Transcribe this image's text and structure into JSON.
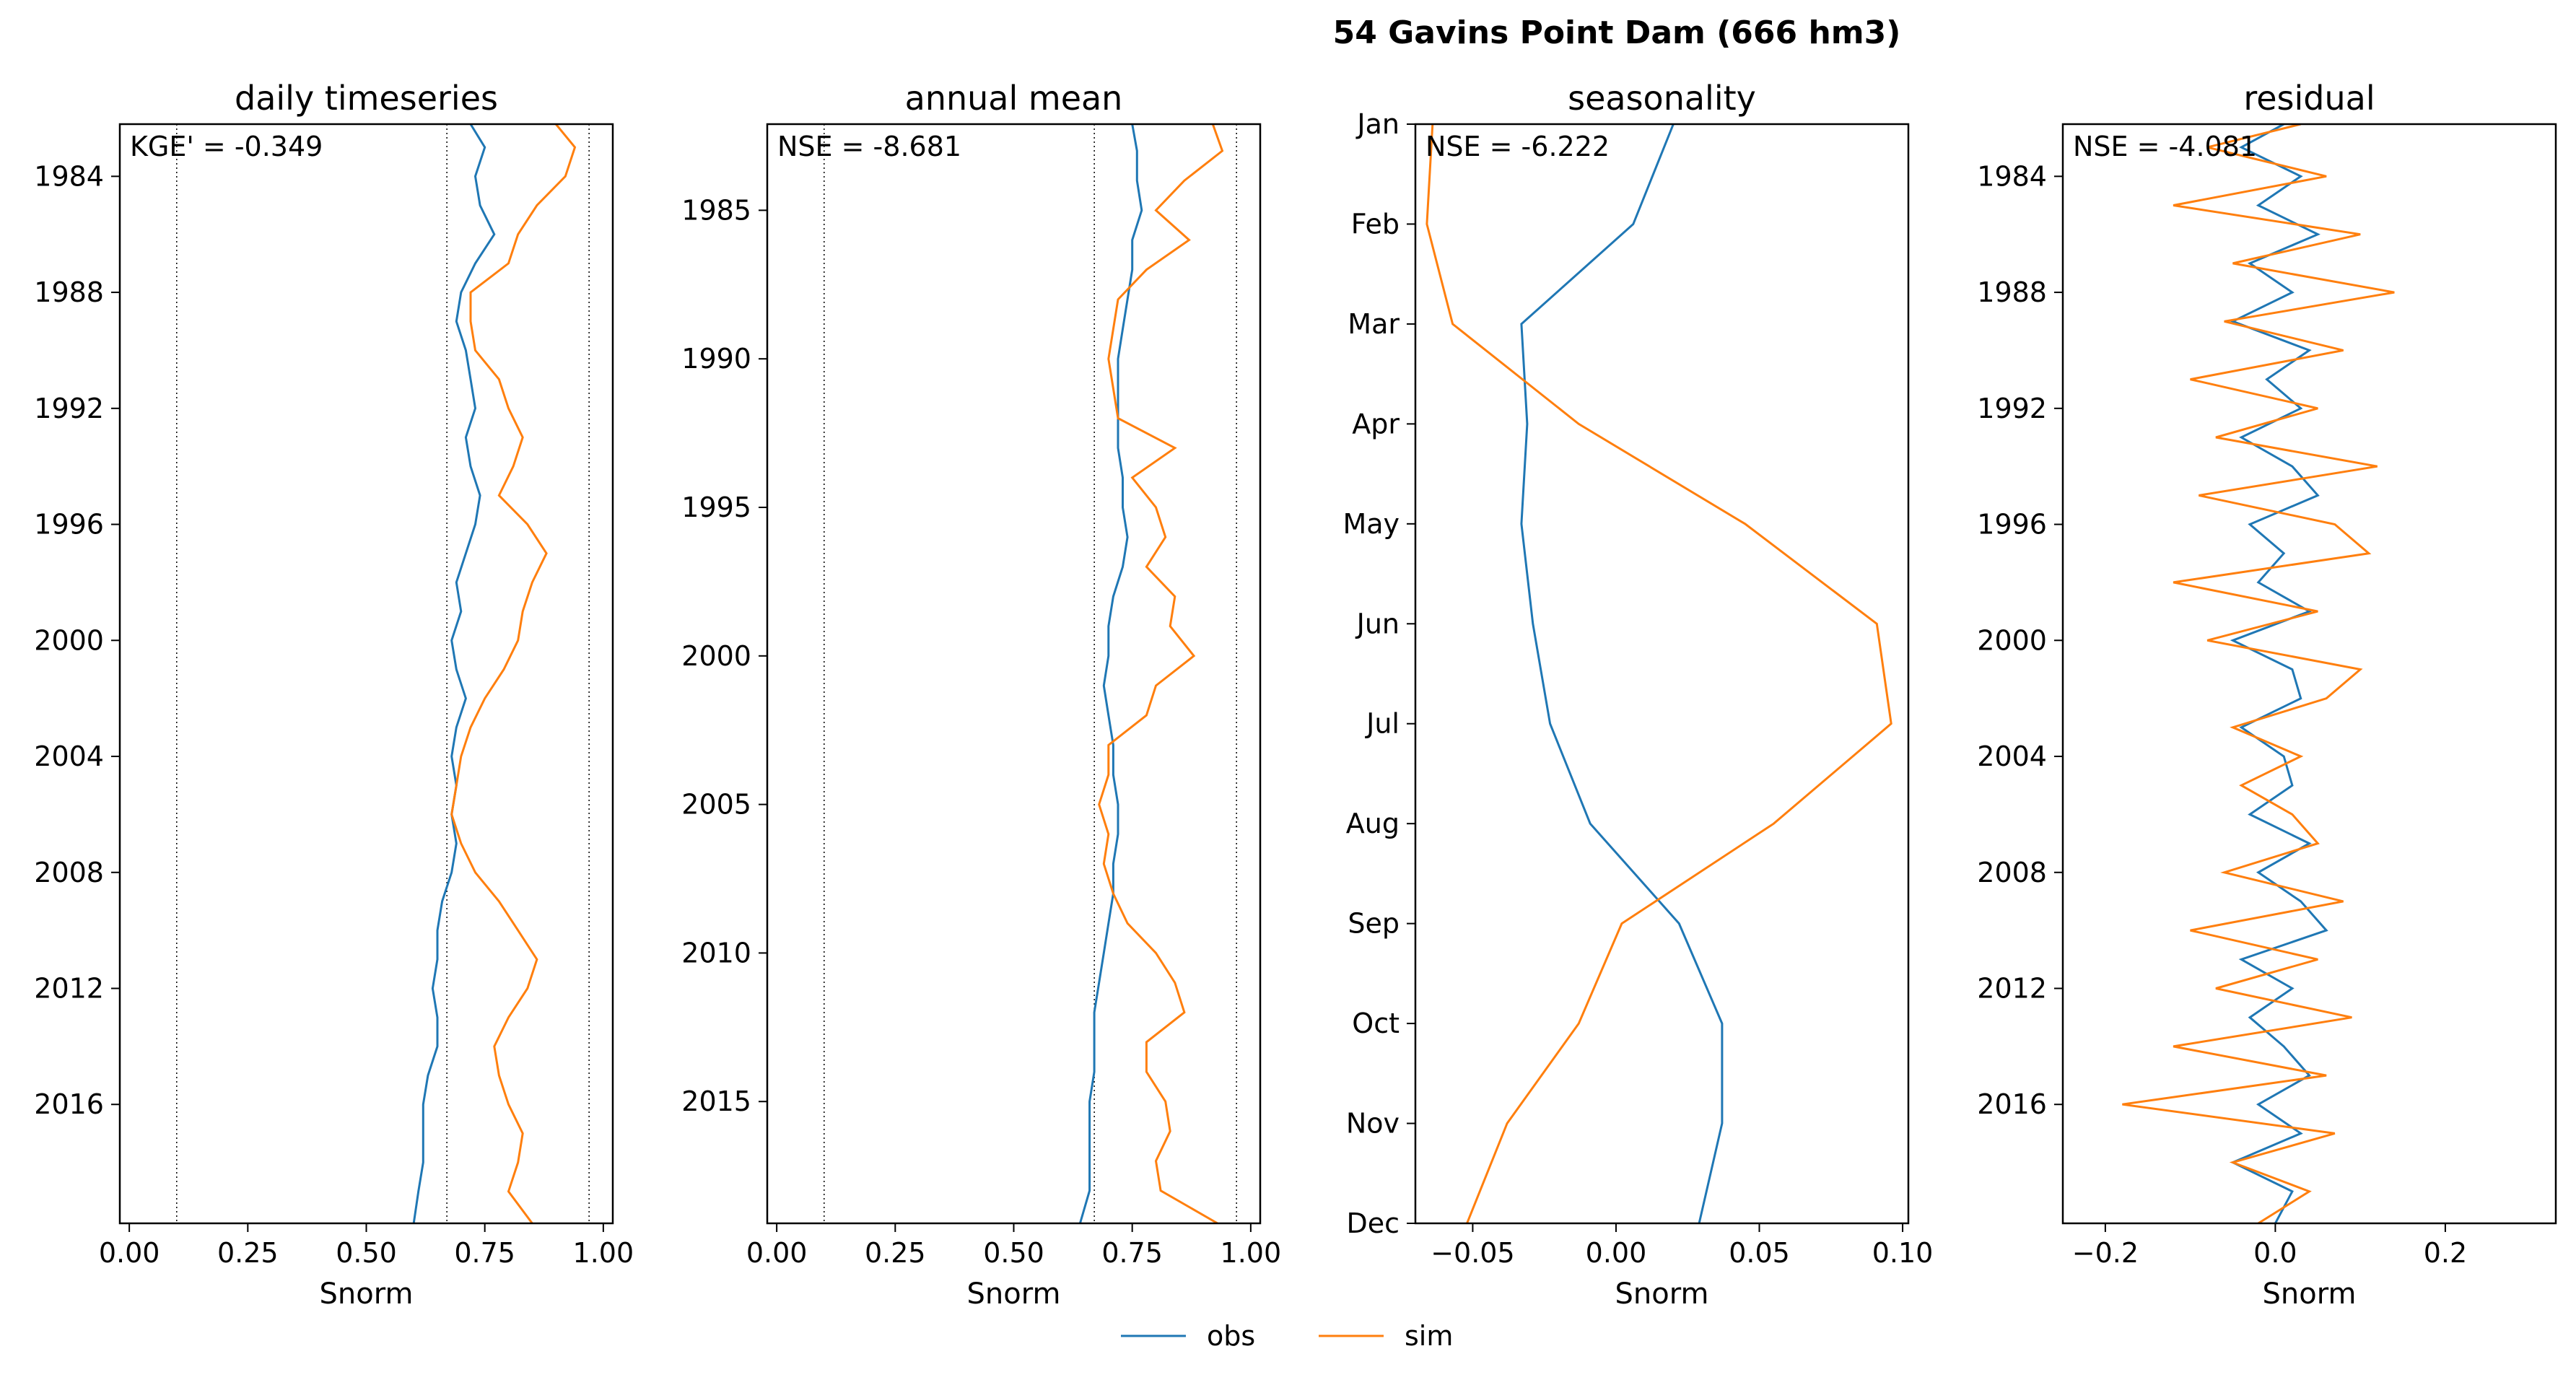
{
  "figure": {
    "suptitle": "54  Gavins Point Dam (666 hm3)",
    "legend": {
      "position": "bottom-center",
      "entries": [
        "obs",
        "sim"
      ]
    },
    "colors": {
      "obs": "#1f77b4",
      "sim": "#ff7f0e",
      "ref_line": "#000000"
    }
  },
  "chart_data": [
    {
      "type": "line",
      "orientation": "horizontal-value",
      "title": "daily timeseries",
      "xlabel": "Snorm",
      "ylabel": "",
      "annotation": "KGE' = -0.349",
      "xlim": [
        -0.02,
        1.02
      ],
      "xticks": [
        0.0,
        0.25,
        0.5,
        0.75,
        1.0
      ],
      "xtick_labels": [
        "0.00",
        "0.25",
        "0.50",
        "0.75",
        "1.00"
      ],
      "ylim": [
        1982.2,
        2020.1
      ],
      "yticks": [
        1984,
        1988,
        1992,
        1996,
        2000,
        2004,
        2008,
        2012,
        2016
      ],
      "ytick_labels": [
        "1984",
        "1988",
        "1992",
        "1996",
        "2000",
        "2004",
        "2008",
        "2012",
        "2016"
      ],
      "y_inverted": true,
      "ref_lines_x": [
        0.1,
        0.67,
        0.97
      ],
      "series": [
        {
          "name": "obs",
          "y": [
            1982.2,
            1983,
            1984,
            1985,
            1986,
            1987,
            1988,
            1989,
            1990,
            1991,
            1992,
            1993,
            1994,
            1995,
            1996,
            1997,
            1998,
            1999,
            2000,
            2001,
            2002,
            2003,
            2004,
            2005,
            2006,
            2007,
            2008,
            2009,
            2010,
            2011,
            2012,
            2013,
            2014,
            2015,
            2016,
            2017,
            2018,
            2019,
            2020.1
          ],
          "values": [
            0.72,
            0.75,
            0.73,
            0.74,
            0.77,
            0.73,
            0.7,
            0.69,
            0.71,
            0.72,
            0.73,
            0.71,
            0.72,
            0.74,
            0.73,
            0.71,
            0.69,
            0.7,
            0.68,
            0.69,
            0.71,
            0.69,
            0.68,
            0.69,
            0.68,
            0.69,
            0.68,
            0.66,
            0.65,
            0.65,
            0.64,
            0.65,
            0.65,
            0.63,
            0.62,
            0.62,
            0.62,
            0.61,
            0.6
          ]
        },
        {
          "name": "sim",
          "y": [
            1982.2,
            1983,
            1984,
            1985,
            1986,
            1987,
            1988,
            1989,
            1990,
            1991,
            1992,
            1993,
            1994,
            1995,
            1996,
            1997,
            1998,
            1999,
            2000,
            2001,
            2002,
            2003,
            2004,
            2005,
            2006,
            2007,
            2008,
            2009,
            2010,
            2011,
            2012,
            2013,
            2014,
            2015,
            2016,
            2017,
            2018,
            2019,
            2020.1
          ],
          "values": [
            0.9,
            0.94,
            0.92,
            0.86,
            0.82,
            0.8,
            0.72,
            0.72,
            0.73,
            0.78,
            0.8,
            0.83,
            0.81,
            0.78,
            0.84,
            0.88,
            0.85,
            0.83,
            0.82,
            0.79,
            0.75,
            0.72,
            0.7,
            0.69,
            0.68,
            0.7,
            0.73,
            0.78,
            0.82,
            0.86,
            0.84,
            0.8,
            0.77,
            0.78,
            0.8,
            0.83,
            0.82,
            0.8,
            0.85
          ]
        }
      ]
    },
    {
      "type": "line",
      "orientation": "horizontal-value",
      "title": "annual mean",
      "xlabel": "Snorm",
      "ylabel": "",
      "annotation": "NSE = -8.681",
      "xlim": [
        -0.02,
        1.02
      ],
      "xticks": [
        0.0,
        0.25,
        0.5,
        0.75,
        1.0
      ],
      "xtick_labels": [
        "0.00",
        "0.25",
        "0.50",
        "0.75",
        "1.00"
      ],
      "ylim": [
        1982.1,
        2019.1
      ],
      "yticks": [
        1985,
        1990,
        1995,
        2000,
        2005,
        2010,
        2015
      ],
      "ytick_labels": [
        "1985",
        "1990",
        "1995",
        "2000",
        "2005",
        "2010",
        "2015"
      ],
      "y_inverted": true,
      "ref_lines_x": [
        0.1,
        0.67,
        0.97
      ],
      "series": [
        {
          "name": "obs",
          "y": [
            1982.1,
            1983,
            1984,
            1985,
            1986,
            1987,
            1988,
            1989,
            1990,
            1991,
            1992,
            1993,
            1994,
            1995,
            1996,
            1997,
            1998,
            1999,
            2000,
            2001,
            2002,
            2003,
            2004,
            2005,
            2006,
            2007,
            2008,
            2009,
            2010,
            2011,
            2012,
            2013,
            2014,
            2015,
            2016,
            2017,
            2018,
            2019.1
          ],
          "values": [
            0.75,
            0.76,
            0.76,
            0.77,
            0.75,
            0.75,
            0.74,
            0.73,
            0.72,
            0.72,
            0.72,
            0.72,
            0.73,
            0.73,
            0.74,
            0.73,
            0.71,
            0.7,
            0.7,
            0.69,
            0.7,
            0.71,
            0.71,
            0.72,
            0.72,
            0.71,
            0.71,
            0.7,
            0.69,
            0.68,
            0.67,
            0.67,
            0.67,
            0.66,
            0.66,
            0.66,
            0.66,
            0.64
          ]
        },
        {
          "name": "sim",
          "y": [
            1982.1,
            1983,
            1984,
            1985,
            1986,
            1987,
            1988,
            1989,
            1990,
            1991,
            1992,
            1993,
            1994,
            1995,
            1996,
            1997,
            1998,
            1999,
            2000,
            2001,
            2002,
            2003,
            2004,
            2005,
            2006,
            2007,
            2008,
            2009,
            2010,
            2011,
            2012,
            2013,
            2014,
            2015,
            2016,
            2017,
            2018,
            2019.1
          ],
          "values": [
            0.92,
            0.94,
            0.86,
            0.8,
            0.87,
            0.78,
            0.72,
            0.71,
            0.7,
            0.71,
            0.72,
            0.84,
            0.75,
            0.8,
            0.82,
            0.78,
            0.84,
            0.83,
            0.88,
            0.8,
            0.78,
            0.7,
            0.7,
            0.68,
            0.7,
            0.69,
            0.71,
            0.74,
            0.8,
            0.84,
            0.86,
            0.78,
            0.78,
            0.82,
            0.83,
            0.8,
            0.81,
            0.93
          ]
        }
      ]
    },
    {
      "type": "line",
      "orientation": "horizontal-value",
      "title": "seasonality",
      "xlabel": "Snorm",
      "ylabel": "",
      "annotation": "NSE = -6.222",
      "xlim": [
        -0.07,
        0.102
      ],
      "xticks": [
        -0.05,
        0.0,
        0.05,
        0.1
      ],
      "xtick_labels": [
        "−0.05",
        "0.00",
        "0.05",
        "0.10"
      ],
      "ylim": [
        1,
        12
      ],
      "yticks": [
        1,
        2,
        3,
        4,
        5,
        6,
        7,
        8,
        9,
        10,
        11,
        12
      ],
      "ytick_labels": [
        "Jan",
        "Feb",
        "Mar",
        "Apr",
        "May",
        "Jun",
        "Jul",
        "Aug",
        "Sep",
        "Oct",
        "Nov",
        "Dec"
      ],
      "y_inverted": true,
      "ref_lines_x": [],
      "series": [
        {
          "name": "obs",
          "y": [
            1,
            2,
            3,
            4,
            5,
            6,
            7,
            8,
            9,
            10,
            11,
            12
          ],
          "values": [
            0.02,
            0.006,
            -0.033,
            -0.031,
            -0.033,
            -0.029,
            -0.023,
            -0.009,
            0.022,
            0.037,
            0.037,
            0.029
          ]
        },
        {
          "name": "sim",
          "y": [
            1,
            2,
            3,
            4,
            5,
            6,
            7,
            8,
            9,
            10,
            11,
            12
          ],
          "values": [
            -0.064,
            -0.066,
            -0.057,
            -0.013,
            0.045,
            0.091,
            0.096,
            0.055,
            0.002,
            -0.013,
            -0.038,
            -0.052
          ]
        }
      ]
    },
    {
      "type": "line",
      "orientation": "horizontal-value",
      "title": "residual",
      "xlabel": "Snorm",
      "ylabel": "",
      "annotation": "NSE = -4.081",
      "xlim": [
        -0.25,
        0.33
      ],
      "xticks": [
        -0.2,
        0.0,
        0.2
      ],
      "xtick_labels": [
        "−0.2",
        "0.0",
        "0.2"
      ],
      "ylim": [
        1982.2,
        2020.1
      ],
      "yticks": [
        1984,
        1988,
        1992,
        1996,
        2000,
        2004,
        2008,
        2012,
        2016
      ],
      "ytick_labels": [
        "1984",
        "1988",
        "1992",
        "1996",
        "2000",
        "2004",
        "2008",
        "2012",
        "2016"
      ],
      "y_inverted": true,
      "ref_lines_x": [],
      "series": [
        {
          "name": "obs",
          "y": [
            1982.2,
            1983,
            1984,
            1985,
            1986,
            1987,
            1988,
            1989,
            1990,
            1991,
            1992,
            1993,
            1994,
            1995,
            1996,
            1997,
            1998,
            1999,
            2000,
            2001,
            2002,
            2003,
            2004,
            2005,
            2006,
            2007,
            2008,
            2009,
            2010,
            2011,
            2012,
            2013,
            2014,
            2015,
            2016,
            2017,
            2018,
            2019,
            2020.1
          ],
          "values": [
            0.01,
            -0.04,
            0.03,
            -0.02,
            0.05,
            -0.03,
            0.02,
            -0.05,
            0.04,
            -0.01,
            0.03,
            -0.04,
            0.02,
            0.05,
            -0.03,
            0.01,
            -0.02,
            0.04,
            -0.05,
            0.02,
            0.03,
            -0.04,
            0.01,
            0.02,
            -0.03,
            0.04,
            -0.02,
            0.03,
            0.06,
            -0.04,
            0.02,
            -0.03,
            0.01,
            0.04,
            -0.02,
            0.03,
            -0.05,
            0.02,
            0.0
          ]
        },
        {
          "name": "sim",
          "y": [
            1982.2,
            1983,
            1984,
            1985,
            1986,
            1987,
            1988,
            1989,
            1990,
            1991,
            1992,
            1993,
            1994,
            1995,
            1996,
            1997,
            1998,
            1999,
            2000,
            2001,
            2002,
            2003,
            2004,
            2005,
            2006,
            2007,
            2008,
            2009,
            2010,
            2011,
            2012,
            2013,
            2014,
            2015,
            2016,
            2017,
            2018,
            2019,
            2020.1
          ],
          "values": [
            0.03,
            -0.08,
            0.06,
            -0.12,
            0.1,
            -0.05,
            0.14,
            -0.06,
            0.08,
            -0.1,
            0.05,
            -0.07,
            0.12,
            -0.09,
            0.07,
            0.11,
            -0.12,
            0.05,
            -0.08,
            0.1,
            0.06,
            -0.05,
            0.03,
            -0.04,
            0.02,
            0.05,
            -0.06,
            0.08,
            -0.1,
            0.05,
            -0.07,
            0.09,
            -0.12,
            0.06,
            -0.18,
            0.07,
            -0.05,
            0.04,
            -0.02
          ]
        }
      ]
    }
  ]
}
